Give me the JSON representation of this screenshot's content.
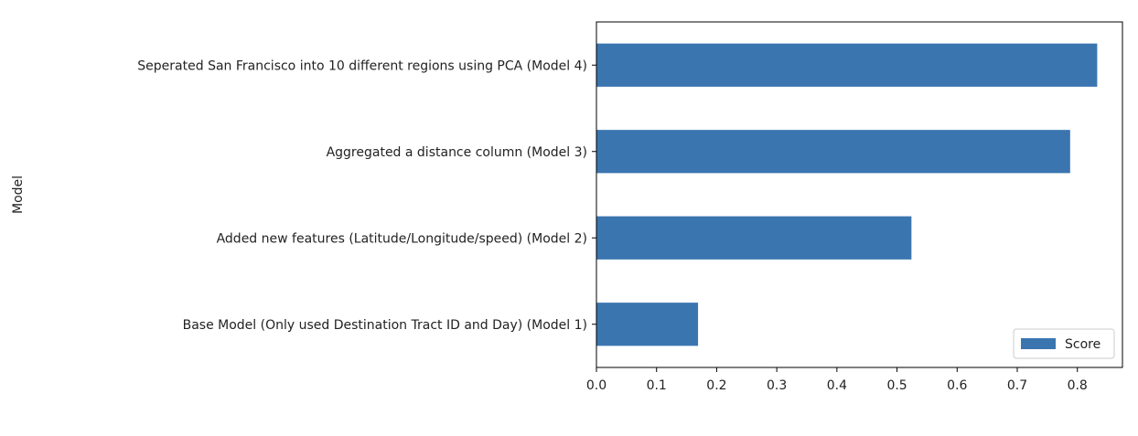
{
  "chart_data": {
    "type": "bar",
    "orientation": "horizontal",
    "ylabel": "Model",
    "xlabel": "",
    "categories": [
      "Base Model (Only used Destination Tract ID and Day) (Model 1)",
      "Added new features (Latitude/Longitude/speed) (Model 2)",
      "Aggregated a distance column (Model 3)",
      "Seperated San Francisco into 10 different regions using PCA (Model 4)"
    ],
    "series": [
      {
        "name": "Score",
        "values": [
          0.169,
          0.524,
          0.788,
          0.833
        ],
        "color": "#3a75b0"
      }
    ],
    "xlim": [
      0.0,
      0.875
    ],
    "xticks": [
      0.0,
      0.1,
      0.2,
      0.3,
      0.4,
      0.5,
      0.6,
      0.7,
      0.8
    ],
    "xtick_labels": [
      "0.0",
      "0.1",
      "0.2",
      "0.3",
      "0.4",
      "0.5",
      "0.6",
      "0.7",
      "0.8"
    ],
    "grid": false,
    "legend_position": "bottom-right"
  }
}
